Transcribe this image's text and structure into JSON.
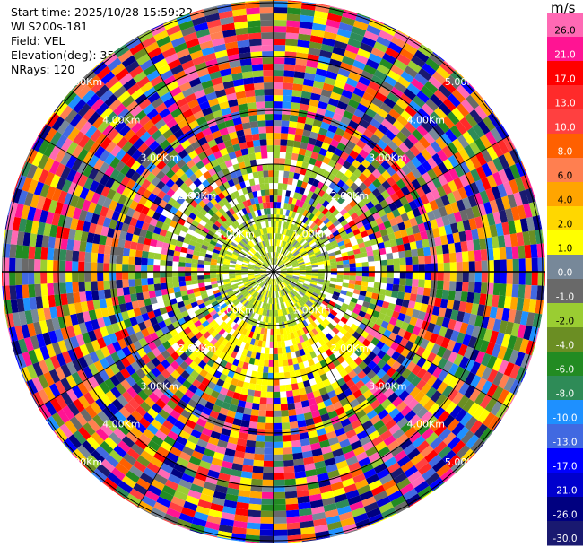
{
  "info": {
    "start_time": "Start time: 2025/10/28 15:59:22",
    "station": "WLS200s-181",
    "field": "Field: VEL",
    "elevation": "Elevation(deg): 35.00",
    "nrays": "NRays: 120"
  },
  "ppi": {
    "n_rays": 120,
    "ring_labels": [
      "1.00Km",
      "2.00Km",
      "3.00Km",
      "4.00Km",
      "5.00Km"
    ]
  },
  "colorbar": {
    "unit": "m/s",
    "ticks": [
      "26.0",
      "21.0",
      "17.0",
      "13.0",
      "10.0",
      "8.0",
      "6.0",
      "4.0",
      "2.0",
      "1.0",
      "0.0",
      "-1.0",
      "-2.0",
      "-4.0",
      "-6.0",
      "-8.0",
      "-10.0",
      "-13.0",
      "-17.0",
      "-21.0",
      "-26.0",
      "-30.0"
    ],
    "colors": [
      "#ff69b4",
      "#ff1493",
      "#ff0000",
      "#ff2a2a",
      "#ff4040",
      "#ff6000",
      "#ff7f50",
      "#ffa500",
      "#ffd700",
      "#ffff00",
      "#778899",
      "#696969",
      "#9acd32",
      "#6b8e23",
      "#228b22",
      "#2e8b57",
      "#1e90ff",
      "#4169e1",
      "#0000ff",
      "#0000cd",
      "#000080",
      "#191970"
    ]
  }
}
